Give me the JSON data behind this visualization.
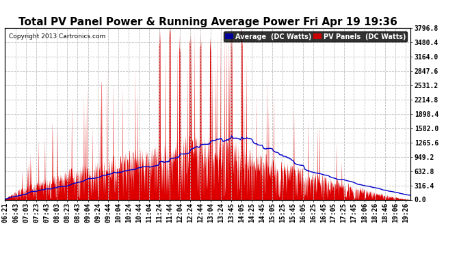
{
  "title": "Total PV Panel Power & Running Average Power Fri Apr 19 19:36",
  "copyright": "Copyright 2013 Cartronics.com",
  "yticks": [
    0.0,
    316.4,
    632.8,
    949.2,
    1265.6,
    1582.0,
    1898.4,
    2214.8,
    2531.2,
    2847.6,
    3164.0,
    3480.4,
    3796.8
  ],
  "ymax": 3796.8,
  "ymin": 0.0,
  "bg_color": "#ffffff",
  "grid_color": "#bbbbbb",
  "pv_color": "#dd0000",
  "avg_color": "#0000cc",
  "legend_avg_bg": "#000099",
  "legend_pv_bg": "#cc0000",
  "title_fontsize": 11,
  "tick_label_fontsize": 7,
  "xtick_labels": [
    "06:21",
    "06:43",
    "07:03",
    "07:23",
    "07:43",
    "08:03",
    "08:23",
    "08:43",
    "09:04",
    "09:24",
    "09:44",
    "10:04",
    "10:24",
    "10:44",
    "11:04",
    "11:24",
    "11:44",
    "12:04",
    "12:24",
    "12:44",
    "13:04",
    "13:24",
    "13:45",
    "14:05",
    "14:25",
    "14:45",
    "15:05",
    "15:25",
    "15:45",
    "16:05",
    "16:25",
    "16:45",
    "17:05",
    "17:25",
    "17:45",
    "18:06",
    "18:26",
    "18:46",
    "19:06",
    "19:26"
  ]
}
